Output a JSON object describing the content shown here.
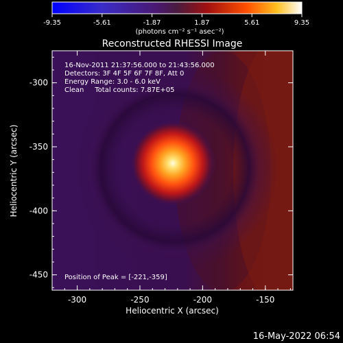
{
  "colorbar": {
    "tick_labels": [
      "-9.35",
      "-5.61",
      "-1.87",
      "1.87",
      "5.61",
      "9.35"
    ],
    "units": "(photons cm⁻² s⁻¹ asec⁻²)",
    "range": [
      -9.35,
      9.35
    ]
  },
  "title": "Reconstructed RHESSI Image",
  "annotations": {
    "time_range": "16-Nov-2011 21:37:56.000 to 21:43:56.000",
    "detectors": "Detectors: 3F 4F 5F 6F 7F 8F, Att 0",
    "energy_range": "Energy Range: 3.0 - 6.0 keV",
    "method_counts": "Clean     Total counts: 7.87E+05",
    "peak_position": "Position of Peak = [-221,-359]"
  },
  "axes": {
    "xlabel": "Heliocentric X (arcsec)",
    "ylabel": "Heliocentric Y (arcsec)",
    "x_ticks": [
      "-300",
      "-250",
      "-200",
      "-150"
    ],
    "x_tick_values": [
      -300,
      -250,
      -200,
      -150
    ],
    "y_ticks": [
      "-300",
      "-350",
      "-400",
      "-450"
    ],
    "y_tick_values": [
      -300,
      -350,
      -400,
      -450
    ],
    "xlim": [
      -320,
      -128
    ],
    "ylim": [
      -462,
      -275
    ]
  },
  "peak": {
    "x": -221,
    "y": -359
  },
  "timestamp": "16-May-2022 06:54",
  "colors": {
    "flare_core": "#fffde0",
    "background_low": "#2a0a3a",
    "background_high": "#7a1810"
  }
}
